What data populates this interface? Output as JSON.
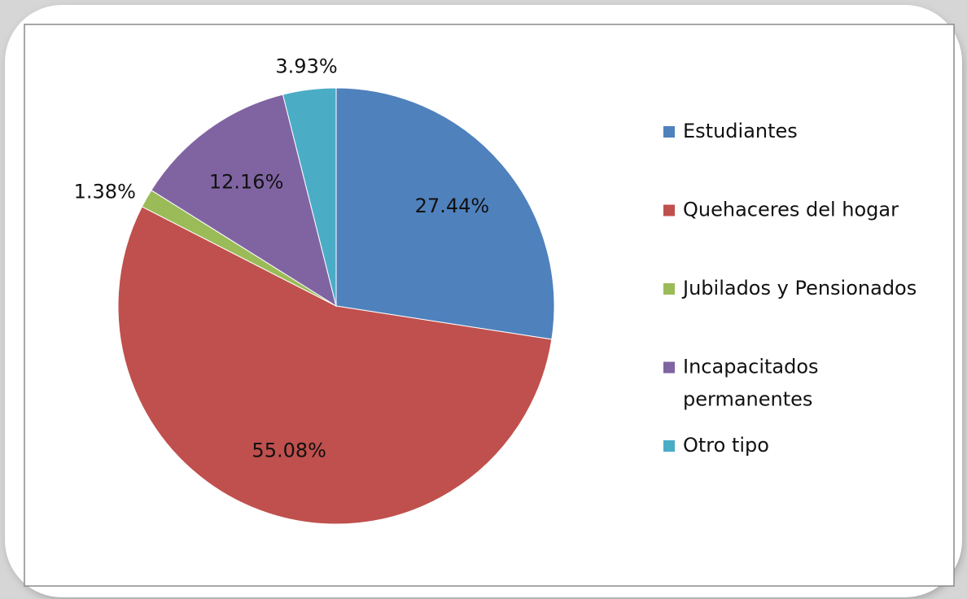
{
  "chart_data": {
    "type": "pie",
    "categories": [
      "Estudiantes",
      "Quehaceres del hogar",
      "Jubilados y Pensionados",
      "Incapacitados permanentes",
      "Otro tipo"
    ],
    "values": [
      27.44,
      55.08,
      1.38,
      12.16,
      3.93
    ],
    "value_labels": [
      "27.44%",
      "55.08%",
      "1.38%",
      "12.16%",
      "3.93%"
    ],
    "colors": [
      "#4f81bd",
      "#c0504d",
      "#9bbb59",
      "#8064a2",
      "#4bacc6"
    ],
    "legend": "right"
  }
}
